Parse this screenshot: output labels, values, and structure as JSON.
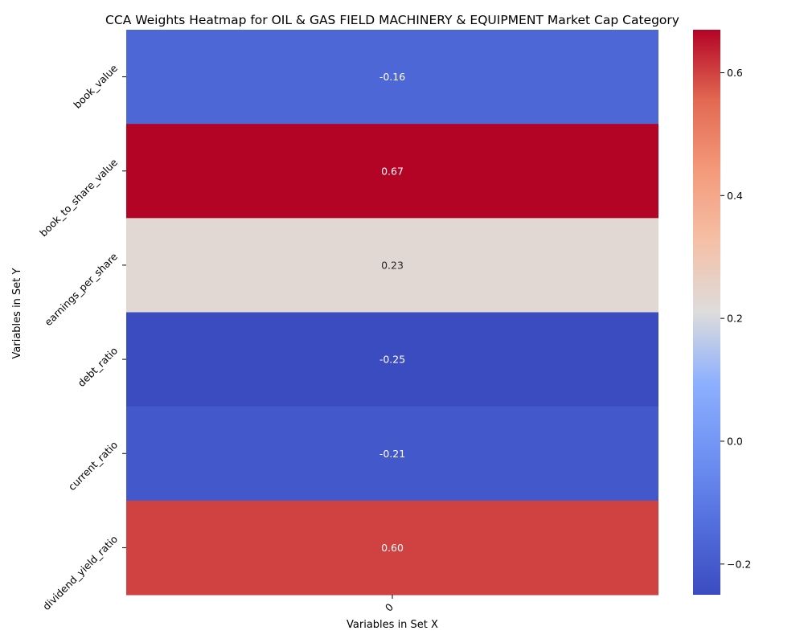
{
  "chart_data": {
    "type": "heatmap",
    "title": "CCA Weights Heatmap for OIL & GAS FIELD MACHINERY & EQUIPMENT Market Cap Category",
    "xlabel": "Variables in Set X",
    "ylabel": "Variables in Set Y",
    "x_categories": [
      "0"
    ],
    "y_categories": [
      "book_value",
      "book_to_share_value",
      "earnings_per_share",
      "debt_ratio",
      "current_ratio",
      "dividend_yield_ratio"
    ],
    "values": [
      [
        -0.16
      ],
      [
        0.67
      ],
      [
        0.23
      ],
      [
        -0.25
      ],
      [
        -0.21
      ],
      [
        0.6
      ]
    ],
    "value_labels": [
      "-0.16",
      "0.67",
      "0.23",
      "-0.25",
      "-0.21",
      "0.60"
    ],
    "colormap": "coolwarm",
    "vmin": -0.25,
    "vmax": 0.67,
    "colorbar_ticks": [
      -0.2,
      0.0,
      0.2,
      0.4,
      0.6
    ],
    "colorbar_tick_labels": [
      "−0.2",
      "0.0",
      "0.2",
      "0.4",
      "0.6"
    ]
  }
}
